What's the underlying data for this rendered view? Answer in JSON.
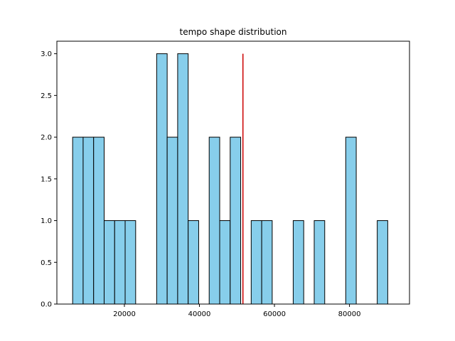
{
  "chart_data": {
    "type": "bar",
    "title": "tempo shape distribution",
    "xlabel": "",
    "ylabel": "",
    "xlim": [
      2000,
      96000
    ],
    "ylim": [
      0,
      3.15
    ],
    "x_ticks": [
      20000,
      40000,
      60000,
      80000
    ],
    "x_tick_labels": [
      "20000",
      "40000",
      "60000",
      "80000"
    ],
    "y_ticks": [
      0.0,
      0.5,
      1.0,
      1.5,
      2.0,
      2.5,
      3.0
    ],
    "y_tick_labels": [
      "0.0",
      "0.5",
      "1.0",
      "1.5",
      "2.0",
      "2.5",
      "3.0"
    ],
    "bin_edges": [
      6200,
      9000,
      11800,
      14600,
      17400,
      20200,
      23000,
      25800,
      28600,
      31400,
      34200,
      37000,
      39800,
      42600,
      45400,
      48200,
      51000,
      53800,
      56600,
      59400,
      62200,
      65000,
      67800,
      70600,
      73400,
      76200,
      79000,
      81800,
      84600,
      87400,
      90200
    ],
    "counts": [
      2,
      2,
      2,
      1,
      1,
      1,
      0,
      0,
      3,
      2,
      3,
      1,
      0,
      2,
      1,
      2,
      0,
      1,
      1,
      0,
      0,
      1,
      0,
      1,
      0,
      0,
      2,
      0,
      0,
      1
    ],
    "reference_line": {
      "x": 51600,
      "y_range": [
        0,
        3
      ],
      "color": "#cc0000"
    },
    "bar_color": "#87ceeb",
    "edge_color": "#000000",
    "grid": false,
    "legend": "none"
  }
}
